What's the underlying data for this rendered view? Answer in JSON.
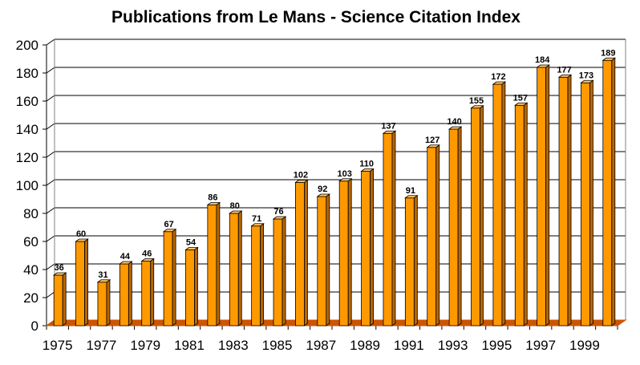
{
  "chart_data": {
    "type": "bar",
    "title": "Publications from Le Mans - Science Citation Index",
    "xlabel": "",
    "ylabel": "",
    "ylim": [
      0,
      200
    ],
    "yticks": [
      0,
      20,
      40,
      60,
      80,
      100,
      120,
      140,
      160,
      180,
      200
    ],
    "categories": [
      "1975",
      "1976",
      "1977",
      "1978",
      "1979",
      "1980",
      "1981",
      "1982",
      "1983",
      "1984",
      "1985",
      "1986",
      "1987",
      "1988",
      "1989",
      "1990",
      "1991",
      "1992",
      "1993",
      "1994",
      "1995",
      "1996",
      "1997",
      "1998",
      "1999",
      "2000"
    ],
    "xtick_labels": [
      "1975",
      "1977",
      "1979",
      "1981",
      "1983",
      "1985",
      "1987",
      "1989",
      "1991",
      "1993",
      "1995",
      "1997",
      "1999"
    ],
    "values": [
      36,
      60,
      31,
      44,
      46,
      67,
      54,
      86,
      80,
      71,
      76,
      102,
      92,
      103,
      110,
      137,
      91,
      127,
      140,
      155,
      172,
      157,
      184,
      177,
      173,
      189
    ],
    "data_labels": true,
    "grid": true,
    "legend": "none",
    "three_d": true,
    "colors": {
      "bar_front": "#FF9900",
      "bar_side": "#B86600",
      "bar_top": "#FFC266",
      "floor": "#CC5500",
      "gridline": "#000000",
      "background": "#FFFFFF"
    }
  }
}
